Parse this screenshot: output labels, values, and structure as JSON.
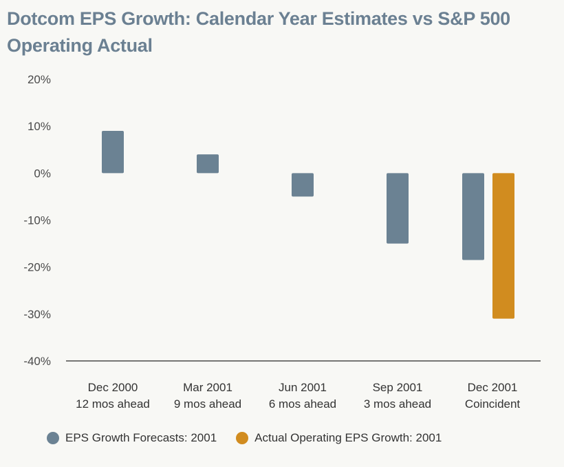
{
  "chart_data": {
    "type": "bar",
    "title": "Dotcom EPS Growth: Calendar Year Estimates vs S&P 500 Operating Actual",
    "xlabel": "",
    "ylabel": "",
    "ylim": [
      -40,
      20
    ],
    "yticks": [
      20,
      10,
      0,
      -10,
      -20,
      -30,
      -40
    ],
    "ytick_labels": [
      "20%",
      "10%",
      "0%",
      "-10%",
      "-20%",
      "-30%",
      "-40%"
    ],
    "grid": false,
    "legend_position": "bottom",
    "categories": [
      {
        "line1": "Dec 2000",
        "line2": "12 mos ahead"
      },
      {
        "line1": "Mar 2001",
        "line2": "9 mos ahead"
      },
      {
        "line1": "Jun 2001",
        "line2": "6 mos ahead"
      },
      {
        "line1": "Sep 2001",
        "line2": "3 mos ahead"
      },
      {
        "line1": "Dec 2001",
        "line2": "Coincident"
      }
    ],
    "series": [
      {
        "name": "EPS Growth Forecasts: 2001",
        "color": "#6b8293",
        "values": [
          9,
          4,
          -5,
          -15,
          -18.5
        ]
      },
      {
        "name": "Actual Operating EPS Growth: 2001",
        "color": "#d18c1f",
        "values": [
          null,
          null,
          null,
          null,
          -31
        ]
      }
    ]
  }
}
